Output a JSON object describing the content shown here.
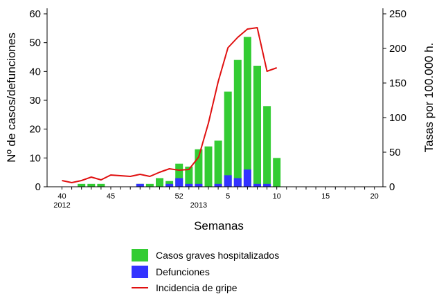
{
  "chart_data": {
    "type": "bar",
    "xlabel": "Semanas",
    "ylabel": "Nº de casos/defunciones",
    "y2label": "Tasas por 100.000 h.",
    "ylim": [
      0,
      60
    ],
    "y2lim": [
      0,
      250
    ],
    "yticks": [
      "0",
      "10",
      "20",
      "30",
      "40",
      "50",
      "60"
    ],
    "y2ticks": [
      "0",
      "50",
      "100",
      "150",
      "200",
      "250"
    ],
    "xtick_labels": [
      {
        "week_index": 0,
        "label": "40"
      },
      {
        "week_index": 5,
        "label": "45"
      },
      {
        "week_index": 12,
        "label": "52"
      },
      {
        "week_index": 17,
        "label": "5"
      },
      {
        "week_index": 22,
        "label": "10"
      },
      {
        "week_index": 27,
        "label": "15"
      },
      {
        "week_index": 32,
        "label": "20"
      }
    ],
    "year_labels": [
      {
        "week_index": 0,
        "label": "2012"
      },
      {
        "week_index": 14,
        "label": "2013"
      }
    ],
    "weeks": [
      "40",
      "41",
      "42",
      "43",
      "44",
      "45",
      "46",
      "47",
      "48",
      "49",
      "50",
      "51",
      "52",
      "1",
      "2",
      "3",
      "4",
      "5",
      "6",
      "7",
      "8",
      "9",
      "10",
      "11",
      "12",
      "13",
      "14",
      "15",
      "16",
      "17",
      "18",
      "19",
      "20"
    ],
    "series": [
      {
        "name": "Casos graves hospitalizados",
        "color": "#33cc33",
        "axis": "left",
        "values": [
          0,
          0,
          1,
          1,
          1,
          0,
          0,
          0,
          1,
          1,
          3,
          2,
          8,
          7,
          13,
          14,
          16,
          33,
          44,
          52,
          42,
          28,
          10,
          0,
          0,
          0,
          0,
          0,
          0,
          0,
          0,
          0,
          0
        ]
      },
      {
        "name": "Defunciones",
        "color": "#3333ff",
        "axis": "left",
        "values": [
          0,
          0,
          0,
          0,
          0,
          0,
          0,
          0,
          1,
          0,
          0,
          1,
          3,
          1,
          1,
          0,
          1,
          4,
          3,
          6,
          1,
          1,
          0,
          0,
          0,
          0,
          0,
          0,
          0,
          0,
          0,
          0,
          0
        ]
      },
      {
        "name": "Incidencia de gripe",
        "type": "line",
        "color": "#e01010",
        "axis": "right",
        "values": [
          9,
          6,
          9,
          14,
          10,
          17,
          16,
          15,
          18,
          15,
          21,
          26,
          24,
          25,
          43,
          92,
          152,
          201,
          216,
          228,
          230,
          167,
          172
        ]
      }
    ],
    "legend": {
      "position": "bottom",
      "entries": [
        {
          "label": "Casos graves hospitalizados",
          "color": "#33cc33",
          "symbol": "box"
        },
        {
          "label": "Defunciones",
          "color": "#3333ff",
          "symbol": "box"
        },
        {
          "label": "Incidencia de gripe",
          "color": "#e01010",
          "symbol": "line"
        }
      ]
    }
  }
}
